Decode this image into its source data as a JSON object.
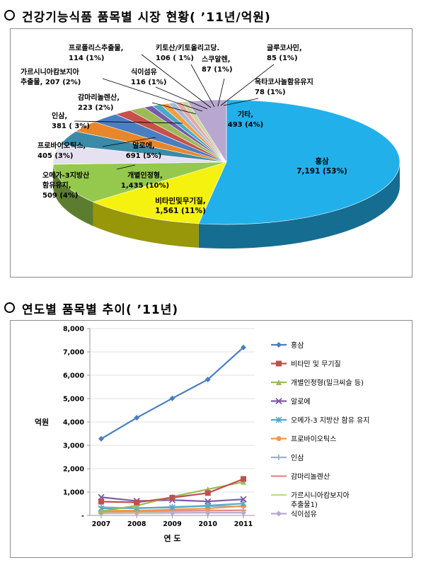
{
  "section1": {
    "title": "건강기능식품 품목별 시장 현황( ’11년/억원)"
  },
  "section2": {
    "title": "연도별 품목별 추이( ’11년)"
  },
  "chart_data": [
    {
      "type": "pie",
      "title": "건강기능식품 품목별 시장 현황( ’11년/억원)",
      "slices": [
        {
          "name": "홍삼",
          "value": 7191,
          "pct": "53%",
          "label": [
            "홍삼",
            "7,191 (53%)"
          ],
          "color": "#22b0ea"
        },
        {
          "name": "비타민및무기질",
          "value": 1561,
          "pct": "11%",
          "label": [
            "비타민및무기질,",
            "1,561 (11%)"
          ],
          "color": "#f5f20f"
        },
        {
          "name": "개별인정형",
          "value": 1435,
          "pct": "10%",
          "label": [
            "개별인정형,",
            "1,435 (10%)"
          ],
          "color": "#95c94d"
        },
        {
          "name": "알로에",
          "value": 691,
          "pct": "5%",
          "label": [
            "알로에,",
            "691 (5%)"
          ],
          "color": "#e6e1f0"
        },
        {
          "name": "오메가-3지방산 함유유지",
          "value": 509,
          "pct": "4%",
          "label": [
            "오메가-3지방산",
            "함유유지,",
            "509 (4%)"
          ],
          "color": "#3a8aa8"
        },
        {
          "name": "프로바이오틱스",
          "value": 405,
          "pct": "3%",
          "label": [
            "프로바이오틱스,",
            "405 (3%)"
          ],
          "color": "#e8862a"
        },
        {
          "name": "인삼",
          "value": 381,
          "pct": "3%",
          "label": [
            "인삼,",
            "381 ( 3%)"
          ],
          "color": "#4a7ec0"
        },
        {
          "name": "감마리놀렌산",
          "value": 223,
          "pct": "2%",
          "label": [
            "감마리놀렌산,",
            "223 (2%)"
          ],
          "color": "#c8504a"
        },
        {
          "name": "가르시니아캄보지아 추출물",
          "value": 207,
          "pct": "2%",
          "label": [
            "가르시니아캄보지아",
            "추출물, 207 (2%)"
          ],
          "color": "#9bbb59"
        },
        {
          "name": "식이섬유",
          "value": 116,
          "pct": "1%",
          "label": [
            "식이섬유",
            "116 (1%)"
          ],
          "color": "#7a5aa8"
        },
        {
          "name": "프로폴리스추출물",
          "value": 114,
          "pct": "1%",
          "label": [
            "프로폴리스추출물,",
            "114 (1%)"
          ],
          "color": "#49aac6"
        },
        {
          "name": "키토산/키토올리고당",
          "value": 106,
          "pct": "1%",
          "label": [
            "키토산/키토올리고당.",
            "106 ( 1%)"
          ],
          "color": "#f0a040"
        },
        {
          "name": "스쿠알렌",
          "value": 87,
          "pct": "1%",
          "label": [
            "스쿠알렌,",
            "87 (1%)"
          ],
          "color": "#a5b9dc"
        },
        {
          "name": "글루코사민",
          "value": 85,
          "pct": "1%",
          "label": [
            "글루코사민,",
            "85 (1%)"
          ],
          "color": "#e8a8a0"
        },
        {
          "name": "옥타코사놀함유유지",
          "value": 78,
          "pct": "1%",
          "label": [
            "옥타코사놀함유유지",
            "78 (1%)"
          ],
          "color": "#c8d8a0"
        },
        {
          "name": "기타",
          "value": 493,
          "pct": "4%",
          "label": [
            "기타,",
            "493 (4%)"
          ],
          "color": "#b8a8d0"
        }
      ]
    },
    {
      "type": "line",
      "title": "연도별 품목별 추이( ’11년)",
      "xlabel": "연 도",
      "ylabel": "억원",
      "x": [
        "2007",
        "2008",
        "2009",
        "2010",
        "2011"
      ],
      "ylim": [
        0,
        8000
      ],
      "yticks": [
        "-",
        "1,000",
        "2,000",
        "3,000",
        "4,000",
        "5,000",
        "6,000",
        "7,000",
        "8,000"
      ],
      "legend_position": "right",
      "series": [
        {
          "name": "홍삼",
          "values": [
            3280,
            4180,
            5010,
            5820,
            7191
          ],
          "color": "#4a7ec0",
          "marker": "diamond"
        },
        {
          "name": "비타민 및 무기질",
          "values": [
            590,
            560,
            760,
            960,
            1561
          ],
          "color": "#c0504d",
          "marker": "square"
        },
        {
          "name": "개별인정형(밀크씨슬 등)",
          "values": [
            180,
            420,
            800,
            1120,
            1435
          ],
          "color": "#9bbb59",
          "marker": "triangle"
        },
        {
          "name": "알로에",
          "values": [
            780,
            620,
            660,
            600,
            691
          ],
          "color": "#7f5aa8",
          "marker": "x"
        },
        {
          "name": "오메가-3 지방산 함유 유지",
          "values": [
            300,
            320,
            340,
            420,
            509
          ],
          "color": "#4bacc6",
          "marker": "star"
        },
        {
          "name": "프로바이오틱스",
          "values": [
            200,
            210,
            250,
            300,
            405
          ],
          "color": "#f79646",
          "marker": "circle"
        },
        {
          "name": "인삼",
          "values": [
            360,
            300,
            370,
            400,
            381
          ],
          "color": "#94b4dc",
          "marker": "plus"
        },
        {
          "name": "감마리놀렌산",
          "values": [
            150,
            170,
            200,
            210,
            223
          ],
          "color": "#e58a8a",
          "marker": "dash"
        },
        {
          "name": "가르시니아캄보지아 추출물1)",
          "values": [
            120,
            140,
            180,
            200,
            207
          ],
          "color": "#c0d890",
          "marker": "dash"
        },
        {
          "name": "식이섬유",
          "values": [
            90,
            100,
            110,
            115,
            116
          ],
          "color": "#b8a8d0",
          "marker": "diamond"
        }
      ]
    }
  ]
}
